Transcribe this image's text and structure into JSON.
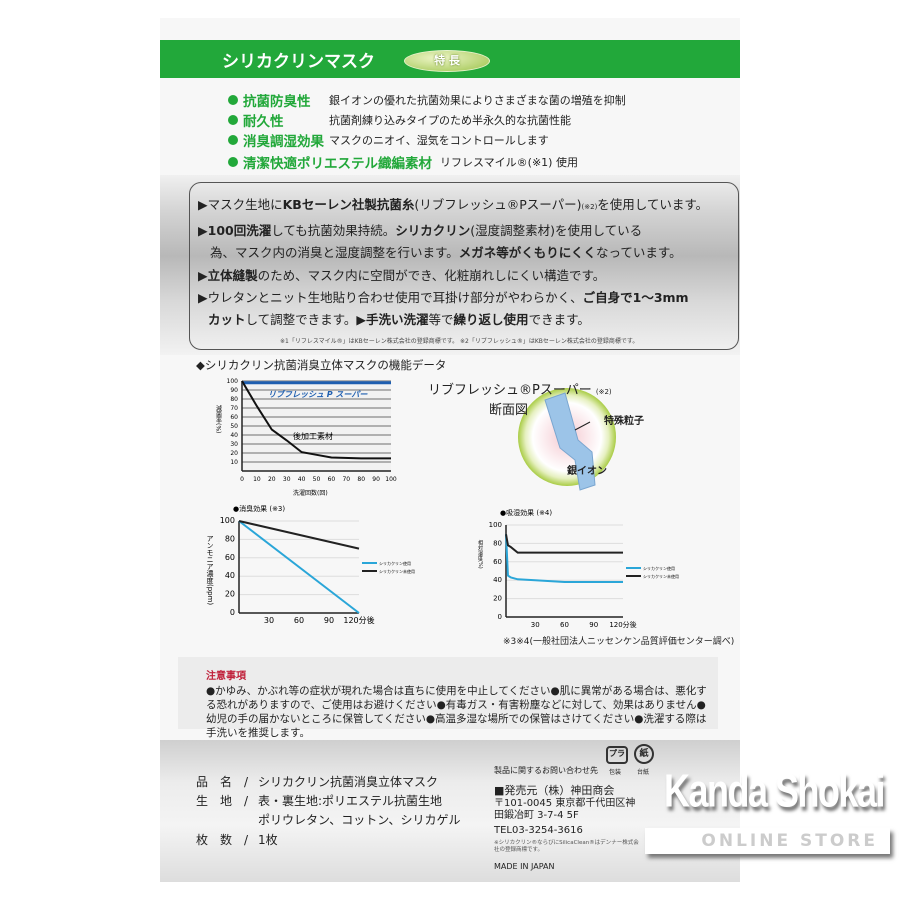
{
  "header": {
    "title": "シリカクリンマスク",
    "badge": "特 長"
  },
  "features": [
    {
      "key": "抗菌防臭性",
      "text": "銀イオンの優れた抗菌効果によりさまざまな菌の増殖を抑制"
    },
    {
      "key": "耐久性",
      "text": "抗菌剤練り込みタイプのため半永久的な抗菌性能"
    },
    {
      "key": "消臭調湿効果",
      "text": "マスクのニオイ、湿気をコントロールします"
    },
    {
      "key": "清潔快適ポリエステル織編素材",
      "text": "リフレスマイル®(※1) 使用"
    }
  ],
  "points": {
    "l1a": "▶マスク生地に",
    "l1b": "KBセーレン社製抗菌糸",
    "l1c": "(リブフレッシュ®Pスーパー)",
    "l1d": "(※2)",
    "l1e": "を使用しています。",
    "l2a": "▶",
    "l2b": "100回洗濯",
    "l2c": "しても抗菌効果持続。",
    "l2d": "シリカクリン",
    "l2e": "(湿度調整素材)を使用している",
    "l3a": "為、マスク内の消臭と湿度調整を行います。",
    "l3b": "メガネ等がくもりにくく",
    "l3c": "なっています。",
    "l4a": "▶",
    "l4b": "立体縫製",
    "l4c": "のため、マスク内に空間ができ、化粧崩れしにくい構造です。",
    "l5a": "▶ウレタンとニット生地貼り合わせ使用で耳掛け部分がやわらかく、",
    "l5b": "ご自身で1〜3mm",
    "l6a": "カット",
    "l6b": "して調整できます。",
    "l6c": "▶手洗い洗濯",
    "l6d": "等で",
    "l6e": "繰り返し使用",
    "l6f": "できます。",
    "footnote": "※1「リフレスマイル®」はKBセーレン株式会社の登録商標です。 ※2「リブフレッシュ®」はKBセーレン株式会社の登録商標です。"
  },
  "data_title": "◆シリカクリン抗菌消臭立体マスクの機能データ",
  "cross_section": {
    "title": "リブフレッシュ®Pスーパー",
    "note": "(※2)",
    "subtitle": "断面図",
    "label_particle": "特殊粒子",
    "label_ion": "銀イオン"
  },
  "chart_data": [
    {
      "type": "line",
      "ylabel": "減菌率(%)",
      "xlabel": "洗濯回数(回)",
      "xlim": [
        0,
        100
      ],
      "ylim": [
        0,
        100
      ],
      "xticks": [
        "0",
        "10",
        "20",
        "30",
        "40",
        "50",
        "60",
        "70",
        "80",
        "90",
        "100"
      ],
      "yticks": [
        "10",
        "20",
        "30",
        "40",
        "50",
        "60",
        "70",
        "80",
        "90",
        "100"
      ],
      "series": [
        {
          "name": "リブフレッシュ P スーパー",
          "color": "#1f5fb0",
          "x": [
            0,
            100
          ],
          "y": [
            98,
            98
          ]
        },
        {
          "name": "後加工素材",
          "color": "#111111",
          "x": [
            0,
            10,
            20,
            30,
            40,
            50,
            60,
            80,
            100
          ],
          "y": [
            100,
            72,
            46,
            34,
            21,
            18,
            15,
            14,
            14
          ]
        }
      ]
    },
    {
      "type": "line",
      "title": "●消臭効果",
      "note": "(※3)",
      "ylabel": "アンモニア濃度(ppm)",
      "xlim": [
        0,
        120
      ],
      "ylim": [
        0,
        100
      ],
      "xticks": [
        "30",
        "60",
        "90",
        "120分後"
      ],
      "yticks": [
        "0",
        "20",
        "40",
        "60",
        "80",
        "100"
      ],
      "series": [
        {
          "name": "シリカクリン使用",
          "color": "#2aa6d8",
          "x": [
            0,
            120
          ],
          "y": [
            100,
            0
          ]
        },
        {
          "name": "シリカクリン未使用",
          "color": "#222222",
          "x": [
            0,
            120
          ],
          "y": [
            100,
            70
          ]
        }
      ]
    },
    {
      "type": "line",
      "title": "●吸湿効果",
      "note": "(※4)",
      "ylabel": "相対湿度(%)",
      "xlim": [
        0,
        120
      ],
      "ylim": [
        0,
        100
      ],
      "xticks": [
        "30",
        "60",
        "90",
        "120分後"
      ],
      "yticks": [
        "0",
        "20",
        "40",
        "60",
        "80",
        "100"
      ],
      "series": [
        {
          "name": "シリカクリン使用",
          "color": "#2aa6d8",
          "x": [
            0,
            2,
            5,
            12,
            30,
            60,
            120
          ],
          "y": [
            90,
            45,
            43,
            41,
            40,
            38,
            38
          ]
        },
        {
          "name": "シリカクリン未使用",
          "color": "#222222",
          "x": [
            0,
            2,
            5,
            12,
            120
          ],
          "y": [
            90,
            78,
            76,
            70,
            70
          ]
        }
      ]
    }
  ],
  "source": "※3※4(一般社団法人ニッセンケン品質評価センター調べ)",
  "caution": {
    "title": "注意事項",
    "text": "●かゆみ、かぶれ等の症状が現れた場合は直ちに使用を中止してください●肌に異常がある場合は、悪化する恐れがありますので、ご使用はお避けください●有毒ガス・有害粉塵などに対して、効果はありません●幼児の手の届かないところに保管してください●高温多湿な場所での保管はさけてください●洗濯する際は手洗いを推奨します。"
  },
  "spec": [
    {
      "label": "品　名　/",
      "value": "シリカクリン抗菌消臭立体マスク"
    },
    {
      "label": "生　地　/",
      "value": "表・裏生地:ポリエステル抗菌生地"
    },
    {
      "label": "",
      "value": "ポリウレタン、コットン、シリカゲル"
    },
    {
      "label": "枚　数　/",
      "value": "1枚"
    }
  ],
  "contact": {
    "heading": "製品に関するお問い合わせ先",
    "seller": "■発売元（株）神田商会",
    "address": "〒101-0045 東京都千代田区神田鍛冶町 3-7-4 5F",
    "tel": "TEL03-3254-3616",
    "note": "※シリカクリン®ならびにSilicaClean®はデンナー株式会社の登録商標です。",
    "origin": "MADE IN JAPAN"
  },
  "recycle": [
    {
      "mark": "プラ",
      "label": "包装"
    },
    {
      "mark": "紙",
      "label": "台紙"
    }
  ],
  "watermark": {
    "logo_top": "Kanda Shokai",
    "logo_bottom": "ONLINE STORE",
    "band": "Kanda Shokai Online Store"
  }
}
